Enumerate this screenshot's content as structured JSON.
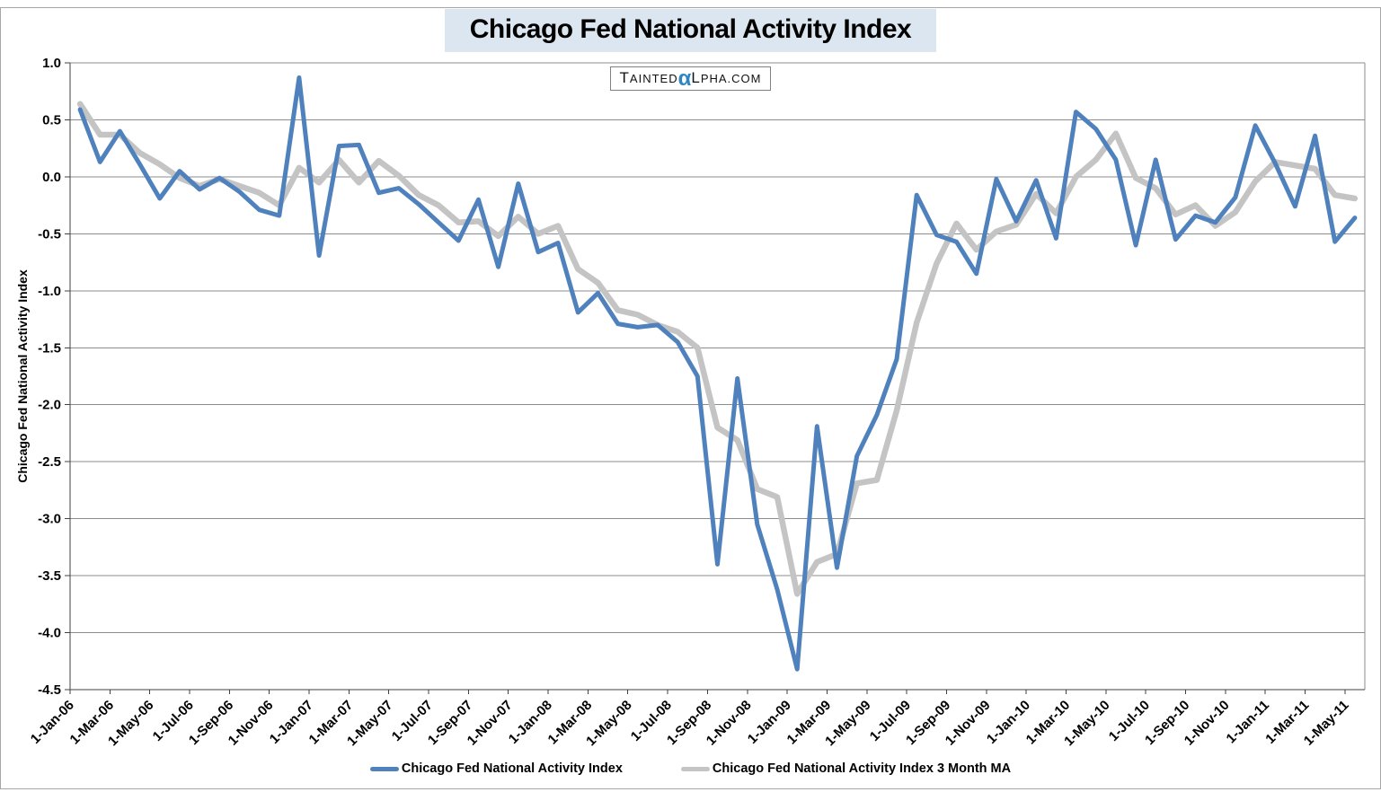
{
  "title": "Chicago Fed National Activity Index",
  "logo": {
    "prefix": "TAINTED",
    "alpha": "α",
    "suffix": "LPHA.COM",
    "alpha_color": "#2e86c0"
  },
  "y_axis_title": "Chicago Fed National Activity Index",
  "colors": {
    "series_main": "#4f81bd",
    "series_ma": "#c4c4c4",
    "title_highlight": "#dce6f1",
    "gridline": "#8c8c8c",
    "axis": "#404040"
  },
  "chart_data": {
    "type": "line",
    "title": "Chicago Fed National Activity Index",
    "xlabel": "",
    "ylabel": "Chicago Fed National Activity Index",
    "ylim": [
      -4.5,
      1.0
    ],
    "y_ticks": [
      1.0,
      0.5,
      0.0,
      -0.5,
      -1.0,
      -1.5,
      -2.0,
      -2.5,
      -3.0,
      -3.5,
      -4.0,
      -4.5
    ],
    "grid": true,
    "legend_position": "bottom",
    "x_tick_labels": [
      "1-Jan-06",
      "1-Mar-06",
      "1-May-06",
      "1-Jul-06",
      "1-Sep-06",
      "1-Nov-06",
      "1-Jan-07",
      "1-Mar-07",
      "1-May-07",
      "1-Jul-07",
      "1-Sep-07",
      "1-Nov-07",
      "1-Jan-08",
      "1-Mar-08",
      "1-May-08",
      "1-Jul-08",
      "1-Sep-08",
      "1-Nov-08",
      "1-Jan-09",
      "1-Mar-09",
      "1-May-09",
      "1-Jul-09",
      "1-Sep-09",
      "1-Nov-09",
      "1-Jan-10",
      "1-Mar-10",
      "1-May-10",
      "1-Jul-10",
      "1-Sep-10",
      "1-Nov-10",
      "1-Jan-11",
      "1-Mar-11",
      "1-May-11"
    ],
    "categories": [
      "Jan-06",
      "Feb-06",
      "Mar-06",
      "Apr-06",
      "May-06",
      "Jun-06",
      "Jul-06",
      "Aug-06",
      "Sep-06",
      "Oct-06",
      "Nov-06",
      "Dec-06",
      "Jan-07",
      "Feb-07",
      "Mar-07",
      "Apr-07",
      "May-07",
      "Jun-07",
      "Jul-07",
      "Aug-07",
      "Sep-07",
      "Oct-07",
      "Nov-07",
      "Dec-07",
      "Jan-08",
      "Feb-08",
      "Mar-08",
      "Apr-08",
      "May-08",
      "Jun-08",
      "Jul-08",
      "Aug-08",
      "Sep-08",
      "Oct-08",
      "Nov-08",
      "Dec-08",
      "Jan-09",
      "Feb-09",
      "Mar-09",
      "Apr-09",
      "May-09",
      "Jun-09",
      "Jul-09",
      "Aug-09",
      "Sep-09",
      "Oct-09",
      "Nov-09",
      "Dec-09",
      "Jan-10",
      "Feb-10",
      "Mar-10",
      "Apr-10",
      "May-10",
      "Jun-10",
      "Jul-10",
      "Aug-10",
      "Sep-10",
      "Oct-10",
      "Nov-10",
      "Dec-10",
      "Jan-11",
      "Feb-11",
      "Mar-11",
      "Apr-11",
      "May-11"
    ],
    "series": [
      {
        "name": "Chicago Fed National Activity Index",
        "color": "#4f81bd",
        "values": [
          0.59,
          0.13,
          0.4,
          0.11,
          -0.19,
          0.05,
          -0.11,
          -0.01,
          -0.13,
          -0.29,
          -0.34,
          0.87,
          -0.69,
          0.27,
          0.28,
          -0.14,
          -0.1,
          -0.24,
          -0.4,
          -0.56,
          -0.2,
          -0.79,
          -0.06,
          -0.66,
          -0.58,
          -1.19,
          -1.02,
          -1.29,
          -1.32,
          -1.3,
          -1.45,
          -1.75,
          -3.4,
          -1.77,
          -3.05,
          -3.62,
          -4.32,
          -2.19,
          -3.43,
          -2.45,
          -2.09,
          -1.6,
          -0.16,
          -0.51,
          -0.57,
          -0.85,
          -0.02,
          -0.39,
          -0.03,
          -0.54,
          0.57,
          0.42,
          0.15,
          -0.6,
          0.15,
          -0.55,
          -0.34,
          -0.4,
          -0.18,
          0.45,
          0.12,
          -0.26,
          0.36,
          -0.57,
          -0.36
        ]
      },
      {
        "name": "Chicago Fed National Activity Index 3 Month MA",
        "color": "#c4c4c4",
        "values": [
          0.64,
          0.37,
          0.37,
          0.21,
          0.11,
          -0.01,
          -0.08,
          -0.02,
          -0.08,
          -0.14,
          -0.25,
          0.08,
          -0.05,
          0.15,
          -0.05,
          0.14,
          0.01,
          -0.16,
          -0.25,
          -0.4,
          -0.39,
          -0.52,
          -0.35,
          -0.5,
          -0.43,
          -0.81,
          -0.93,
          -1.17,
          -1.21,
          -1.3,
          -1.36,
          -1.5,
          -2.2,
          -2.31,
          -2.74,
          -2.81,
          -3.66,
          -3.38,
          -3.31,
          -2.69,
          -2.66,
          -2.05,
          -1.28,
          -0.76,
          -0.41,
          -0.64,
          -0.48,
          -0.42,
          -0.15,
          -0.32,
          0.0,
          0.15,
          0.38,
          -0.01,
          -0.1,
          -0.33,
          -0.25,
          -0.43,
          -0.31,
          -0.04,
          0.13,
          0.1,
          0.07,
          -0.16,
          -0.19
        ]
      }
    ]
  }
}
